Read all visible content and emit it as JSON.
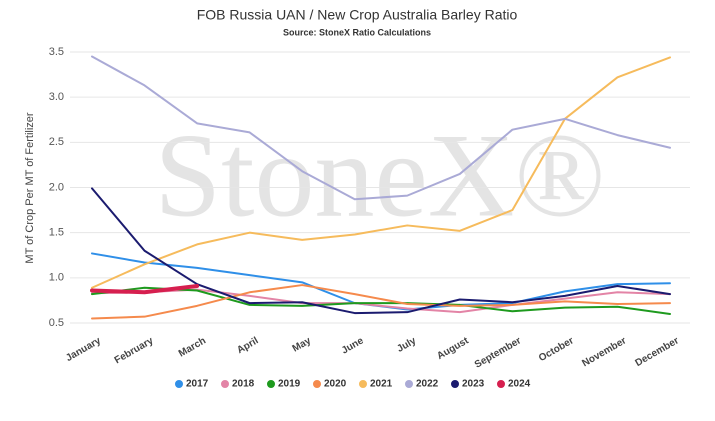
{
  "chart_data": {
    "type": "line",
    "title": "FOB Russia UAN / New Crop Australia Barley Ratio",
    "subtitle": "Source: StoneX Ratio Calculations",
    "y_label": "MT of Crop Per MT of Fertilizer",
    "watermark": "StoneX®",
    "categories": [
      "January",
      "February",
      "March",
      "April",
      "May",
      "June",
      "July",
      "August",
      "September",
      "October",
      "November",
      "December"
    ],
    "ylim": [
      0.5,
      3.5
    ],
    "yticks": [
      0.5,
      {
        "value": 1,
        "label": "1.0"
      },
      1.5,
      {
        "value": 2,
        "label": "2.0"
      },
      2.5,
      {
        "value": 3,
        "label": "3.0"
      },
      3.5
    ],
    "grid": true,
    "legend": "bottom",
    "series": [
      {
        "name": "2017",
        "color": "#2f8fe8",
        "values": [
          1.27,
          1.17,
          1.11,
          1.03,
          0.95,
          0.72,
          0.65,
          0.7,
          0.72,
          0.85,
          0.93,
          0.94
        ]
      },
      {
        "name": "2018",
        "color": "#e384a6",
        "values": [
          0.83,
          0.84,
          0.87,
          0.8,
          0.72,
          0.72,
          0.66,
          0.62,
          0.7,
          0.77,
          0.84,
          0.82
        ]
      },
      {
        "name": "2019",
        "color": "#1e9a1e",
        "values": [
          0.82,
          0.89,
          0.86,
          0.7,
          0.69,
          0.72,
          0.72,
          0.7,
          0.63,
          0.67,
          0.68,
          0.6
        ]
      },
      {
        "name": "2020",
        "color": "#f58a4c",
        "values": [
          0.55,
          0.57,
          0.69,
          0.84,
          0.92,
          0.82,
          0.71,
          0.69,
          0.7,
          0.74,
          0.71,
          0.72
        ]
      },
      {
        "name": "2021",
        "color": "#f6bb5c",
        "values": [
          0.89,
          1.15,
          1.37,
          1.5,
          1.42,
          1.48,
          1.58,
          1.52,
          1.75,
          2.76,
          3.22,
          3.44
        ]
      },
      {
        "name": "2022",
        "color": "#aaaad6",
        "values": [
          3.45,
          3.13,
          2.71,
          2.61,
          2.18,
          1.87,
          1.91,
          2.15,
          2.64,
          2.76,
          2.58,
          2.44
        ]
      },
      {
        "name": "2023",
        "color": "#1b1b6f",
        "values": [
          1.99,
          1.3,
          0.93,
          0.72,
          0.73,
          0.61,
          0.62,
          0.76,
          0.73,
          0.8,
          0.91,
          0.82
        ]
      },
      {
        "name": "2024",
        "color": "#d61f4f",
        "values": [
          0.86,
          0.84,
          0.91,
          null,
          null,
          null,
          null,
          null,
          null,
          null,
          null,
          null
        ]
      }
    ]
  }
}
